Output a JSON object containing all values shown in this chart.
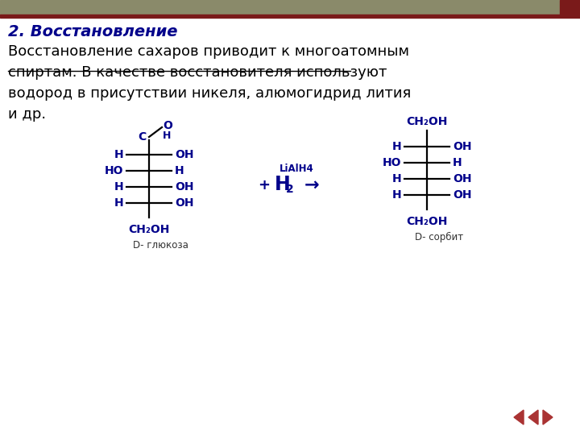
{
  "bg_color": "#ffffff",
  "header_bar_color": "#8a8a6a",
  "header_bar_dark": "#7a1a1a",
  "title_text": "2. Восстановление",
  "title_color": "#00008b",
  "title_fontsize": 14,
  "body_text_line1": "Восстановление сахаров приводит к многоатомным",
  "body_text_line2_strike": "спиртам. В качестве восстановителя используют",
  "body_text_line3": "водород в присутствии никеля, алюмогидрид лития",
  "body_text_line4": "и др.",
  "body_fontsize": 13,
  "body_color": "#000000",
  "chem_color": "#00008b",
  "label_glucose": "D- глюкоза",
  "label_sorbit": "D- сорбит",
  "arrow_text_top": "LiAlH4",
  "nav_color": "#aa3333"
}
